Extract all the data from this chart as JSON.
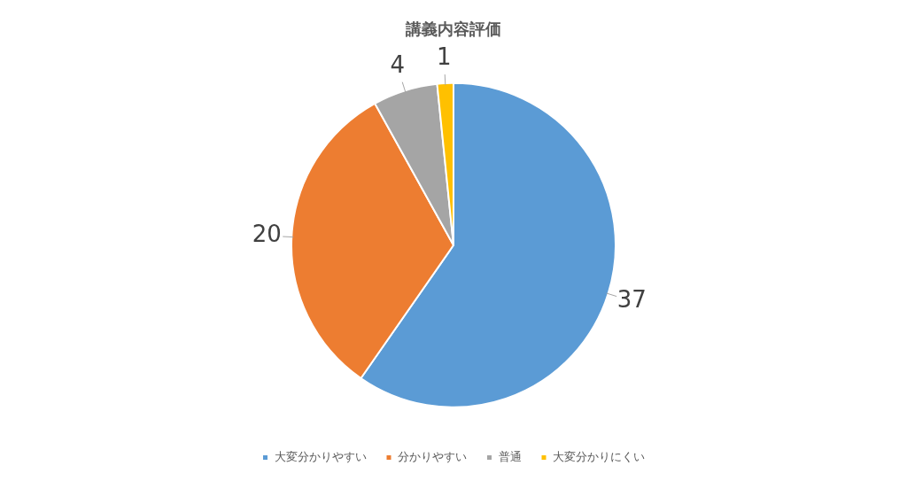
{
  "chart_data": {
    "type": "pie",
    "title": "講義内容評価",
    "categories": [
      "大変分かりやすい",
      "分かりやすい",
      "普通",
      "大変分かりにくい"
    ],
    "values": [
      37,
      20,
      4,
      1
    ],
    "colors": [
      "#5b9bd5",
      "#ed7d31",
      "#a5a5a5",
      "#ffc000"
    ],
    "legend": "bottom",
    "data_labels": true
  }
}
